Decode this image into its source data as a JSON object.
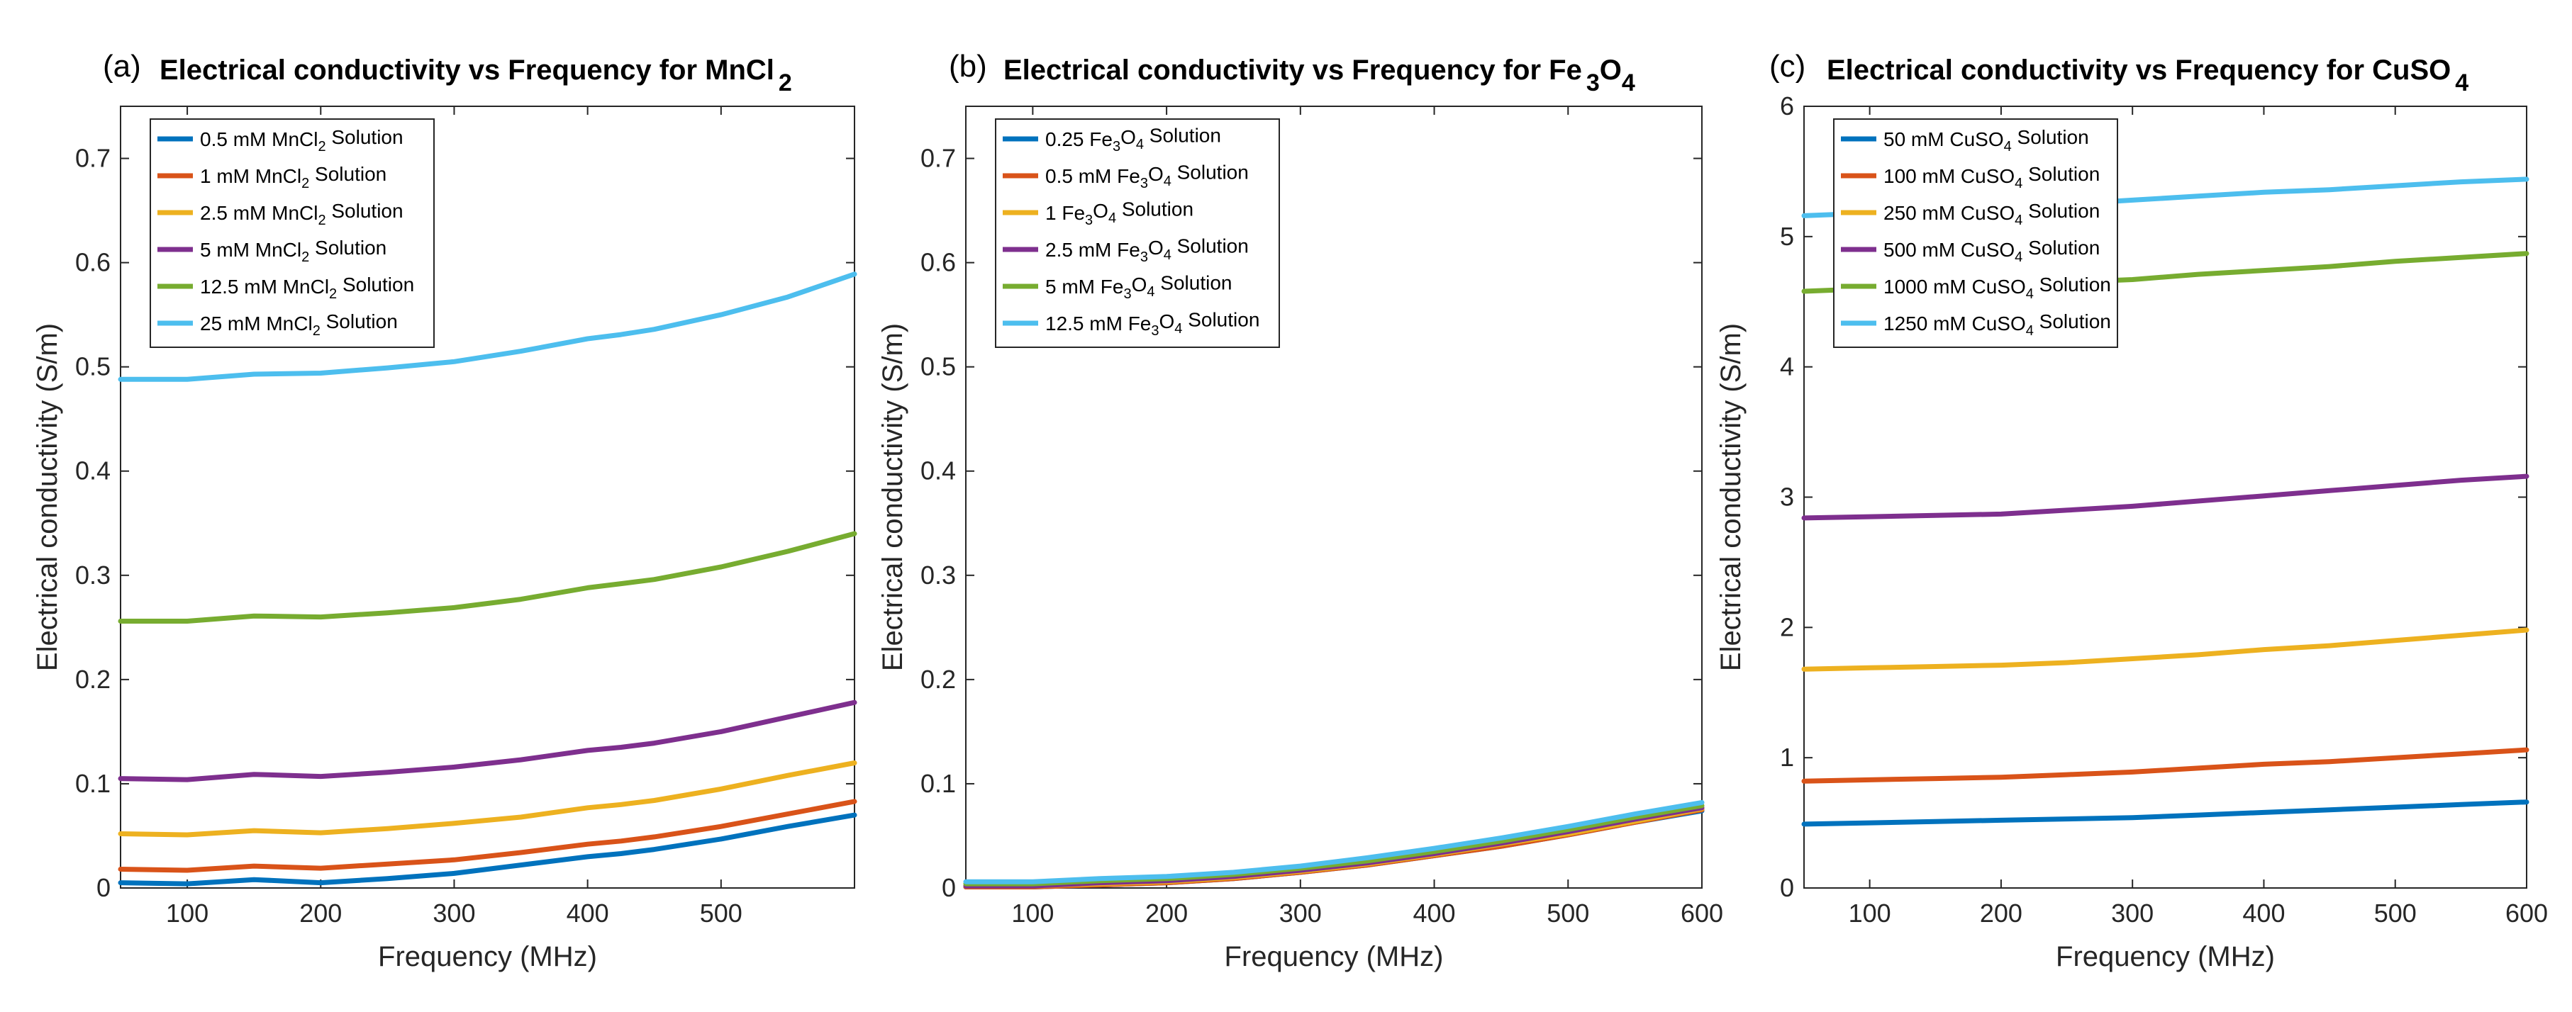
{
  "chart_data": [
    {
      "type": "line",
      "panel": "(a)",
      "title": "Electrical conductivity vs Frequency for MnCl",
      "title_sub": "2",
      "xlabel": "Frequency (MHz)",
      "ylabel": "Electrical conductivity (S/m)",
      "xlim": [
        50,
        600
      ],
      "ylim": [
        0,
        0.75
      ],
      "xticks": [
        100,
        200,
        300,
        400,
        500
      ],
      "xtick_labels": [
        "100",
        "200",
        "300",
        "400",
        "500"
      ],
      "yticks": [
        0,
        0.1,
        0.2,
        0.3,
        0.4,
        0.5,
        0.6,
        0.7
      ],
      "ytick_labels": [
        "0",
        "0.1",
        "0.2",
        "0.3",
        "0.4",
        "0.5",
        "0.6",
        "0.7"
      ],
      "legend_location": "top-left",
      "x": [
        50,
        100,
        150,
        200,
        250,
        300,
        350,
        400,
        425,
        450,
        500,
        550,
        600
      ],
      "series": [
        {
          "name": "0.5 mM MnCl2 Solution",
          "label": [
            {
              "t": "0.5 mM MnCl"
            },
            {
              "t": "2",
              "sub": true
            },
            {
              "t": " Solution"
            }
          ],
          "color": "#0072BD",
          "values": [
            0.005,
            0.004,
            0.008,
            0.005,
            0.009,
            0.014,
            0.022,
            0.03,
            0.033,
            0.037,
            0.047,
            0.059,
            0.07
          ]
        },
        {
          "name": "1 mM MnCl2 Solution",
          "label": [
            {
              "t": "1 mM MnCl"
            },
            {
              "t": "2",
              "sub": true
            },
            {
              "t": " Solution"
            }
          ],
          "color": "#D95319",
          "values": [
            0.018,
            0.017,
            0.021,
            0.019,
            0.023,
            0.027,
            0.034,
            0.042,
            0.045,
            0.049,
            0.059,
            0.071,
            0.083
          ]
        },
        {
          "name": "2.5 mM MnCl2 Solution",
          "label": [
            {
              "t": "2.5 mM MnCl"
            },
            {
              "t": "2",
              "sub": true
            },
            {
              "t": " Solution"
            }
          ],
          "color": "#EDB120",
          "values": [
            0.052,
            0.051,
            0.055,
            0.053,
            0.057,
            0.062,
            0.068,
            0.077,
            0.08,
            0.084,
            0.095,
            0.108,
            0.12
          ]
        },
        {
          "name": "5 mM MnCl2 Solution",
          "label": [
            {
              "t": "5 mM MnCl"
            },
            {
              "t": "2",
              "sub": true
            },
            {
              "t": " Solution"
            }
          ],
          "color": "#7E2F8E",
          "values": [
            0.105,
            0.104,
            0.109,
            0.107,
            0.111,
            0.116,
            0.123,
            0.132,
            0.135,
            0.139,
            0.15,
            0.164,
            0.178
          ]
        },
        {
          "name": "12.5 mM MnCl2 Solution",
          "label": [
            {
              "t": "12.5 mM MnCl"
            },
            {
              "t": "2",
              "sub": true
            },
            {
              "t": " Solution"
            }
          ],
          "color": "#77AC30",
          "values": [
            0.256,
            0.256,
            0.261,
            0.26,
            0.264,
            0.269,
            0.277,
            0.288,
            0.292,
            0.296,
            0.308,
            0.323,
            0.34
          ]
        },
        {
          "name": "25 mM MnCl2 Solution",
          "label": [
            {
              "t": "25 mM MnCl"
            },
            {
              "t": "2",
              "sub": true
            },
            {
              "t": " Solution"
            }
          ],
          "color": "#4DBEEE",
          "values": [
            0.488,
            0.488,
            0.493,
            0.494,
            0.499,
            0.505,
            0.515,
            0.527,
            0.531,
            0.536,
            0.55,
            0.567,
            0.589
          ]
        }
      ]
    },
    {
      "type": "line",
      "panel": "(b)",
      "title": "Electrical conductivity vs Frequency for Fe",
      "title_sub": "3",
      "title_tail": "O",
      "title_tail_sub": "4",
      "xlabel": "Frequency (MHz)",
      "ylabel": "Electrical conductivity (S/m)",
      "xlim": [
        50,
        600
      ],
      "ylim": [
        0,
        0.75
      ],
      "xticks": [
        100,
        200,
        300,
        400,
        500,
        600
      ],
      "xtick_labels": [
        "100",
        "200",
        "300",
        "400",
        "500",
        "600"
      ],
      "yticks": [
        0,
        0.1,
        0.2,
        0.3,
        0.4,
        0.5,
        0.6,
        0.7
      ],
      "ytick_labels": [
        "0",
        "0.1",
        "0.2",
        "0.3",
        "0.4",
        "0.5",
        "0.6",
        "0.7"
      ],
      "legend_location": "top-left",
      "x": [
        50,
        100,
        150,
        200,
        250,
        300,
        350,
        400,
        450,
        500,
        550,
        600
      ],
      "series": [
        {
          "name": "0.25 Fe3O4 Solution",
          "label": [
            {
              "t": "0.25 Fe"
            },
            {
              "t": "3",
              "sub": true
            },
            {
              "t": "O"
            },
            {
              "t": "4",
              "sub": true
            },
            {
              "t": " Solution"
            }
          ],
          "color": "#0072BD",
          "values": [
            0.001,
            0.001,
            0.003,
            0.005,
            0.009,
            0.015,
            0.022,
            0.031,
            0.04,
            0.051,
            0.063,
            0.074
          ]
        },
        {
          "name": "0.5 mM Fe3O4 Solution",
          "label": [
            {
              "t": "0.5 mM Fe"
            },
            {
              "t": "3",
              "sub": true
            },
            {
              "t": "O"
            },
            {
              "t": "4",
              "sub": true
            },
            {
              "t": " Solution"
            }
          ],
          "color": "#D95319",
          "values": [
            0.001,
            0.001,
            0.003,
            0.005,
            0.009,
            0.015,
            0.022,
            0.031,
            0.04,
            0.051,
            0.063,
            0.075
          ]
        },
        {
          "name": "1 Fe3O4 Solution",
          "label": [
            {
              "t": "1 Fe"
            },
            {
              "t": "3",
              "sub": true
            },
            {
              "t": "O"
            },
            {
              "t": "4",
              "sub": true
            },
            {
              "t": " Solution"
            }
          ],
          "color": "#EDB120",
          "values": [
            0.002,
            0.002,
            0.004,
            0.006,
            0.01,
            0.016,
            0.023,
            0.032,
            0.042,
            0.052,
            0.064,
            0.076
          ]
        },
        {
          "name": "2.5 mM Fe3O4 Solution",
          "label": [
            {
              "t": "2.5 mM Fe"
            },
            {
              "t": "3",
              "sub": true
            },
            {
              "t": "O"
            },
            {
              "t": "4",
              "sub": true
            },
            {
              "t": " Solution"
            }
          ],
          "color": "#7E2F8E",
          "values": [
            0.002,
            0.002,
            0.005,
            0.007,
            0.011,
            0.017,
            0.024,
            0.033,
            0.043,
            0.054,
            0.066,
            0.077
          ]
        },
        {
          "name": "5 mM Fe3O4 Solution",
          "label": [
            {
              "t": "5 mM Fe"
            },
            {
              "t": "3",
              "sub": true
            },
            {
              "t": "O"
            },
            {
              "t": "4",
              "sub": true
            },
            {
              "t": " Solution"
            }
          ],
          "color": "#77AC30",
          "values": [
            0.004,
            0.004,
            0.007,
            0.009,
            0.013,
            0.019,
            0.026,
            0.035,
            0.045,
            0.056,
            0.068,
            0.079
          ]
        },
        {
          "name": "12.5 mM Fe3O4 Solution",
          "label": [
            {
              "t": "12.5 mM Fe"
            },
            {
              "t": "3",
              "sub": true
            },
            {
              "t": "O"
            },
            {
              "t": "4",
              "sub": true
            },
            {
              "t": " Solution"
            }
          ],
          "color": "#4DBEEE",
          "values": [
            0.006,
            0.006,
            0.009,
            0.011,
            0.015,
            0.021,
            0.029,
            0.038,
            0.048,
            0.059,
            0.071,
            0.082
          ]
        }
      ]
    },
    {
      "type": "line",
      "panel": "(c)",
      "title": "Electrical conductivity vs Frequency for CuSO",
      "title_sub": "4",
      "xlabel": "Frequency (MHz)",
      "ylabel": "Electrical conductivity (S/m)",
      "xlim": [
        50,
        600
      ],
      "ylim": [
        0,
        6
      ],
      "xticks": [
        100,
        200,
        300,
        400,
        500,
        600
      ],
      "xtick_labels": [
        "100",
        "200",
        "300",
        "400",
        "500",
        "600"
      ],
      "yticks": [
        0,
        1,
        2,
        3,
        4,
        5,
        6
      ],
      "ytick_labels": [
        "0",
        "1",
        "2",
        "3",
        "4",
        "5",
        "6"
      ],
      "legend_location": "top-left",
      "x": [
        50,
        100,
        150,
        200,
        250,
        300,
        350,
        400,
        450,
        500,
        550,
        600
      ],
      "series": [
        {
          "name": "50 mM CuSO4 Solution",
          "label": [
            {
              "t": "50 mM CuSO"
            },
            {
              "t": "4",
              "sub": true
            },
            {
              "t": " Solution"
            }
          ],
          "color": "#0072BD",
          "values": [
            0.49,
            0.5,
            0.51,
            0.52,
            0.53,
            0.54,
            0.56,
            0.58,
            0.6,
            0.62,
            0.64,
            0.66
          ]
        },
        {
          "name": "100 mM CuSO4 Solution",
          "label": [
            {
              "t": "100 mM CuSO"
            },
            {
              "t": "4",
              "sub": true
            },
            {
              "t": " Solution"
            }
          ],
          "color": "#D95319",
          "values": [
            0.82,
            0.83,
            0.84,
            0.85,
            0.87,
            0.89,
            0.92,
            0.95,
            0.97,
            1.0,
            1.03,
            1.06
          ]
        },
        {
          "name": "250 mM CuSO4 Solution",
          "label": [
            {
              "t": "250 mM CuSO"
            },
            {
              "t": "4",
              "sub": true
            },
            {
              "t": " Solution"
            }
          ],
          "color": "#EDB120",
          "values": [
            1.68,
            1.69,
            1.7,
            1.71,
            1.73,
            1.76,
            1.79,
            1.83,
            1.86,
            1.9,
            1.94,
            1.98
          ]
        },
        {
          "name": "500 mM CuSO4 Solution",
          "label": [
            {
              "t": "500 mM CuSO"
            },
            {
              "t": "4",
              "sub": true
            },
            {
              "t": " Solution"
            }
          ],
          "color": "#7E2F8E",
          "values": [
            2.84,
            2.85,
            2.86,
            2.87,
            2.9,
            2.93,
            2.97,
            3.01,
            3.05,
            3.09,
            3.13,
            3.16
          ]
        },
        {
          "name": "1000 mM CuSO4 Solution",
          "label": [
            {
              "t": "1000 mM CuSO"
            },
            {
              "t": "4",
              "sub": true
            },
            {
              "t": " Solution"
            }
          ],
          "color": "#77AC30",
          "values": [
            4.58,
            4.6,
            4.62,
            4.63,
            4.65,
            4.67,
            4.71,
            4.74,
            4.77,
            4.81,
            4.84,
            4.87
          ]
        },
        {
          "name": "1250 mM CuSO4 Solution",
          "label": [
            {
              "t": "1250 mM CuSO"
            },
            {
              "t": "4",
              "sub": true
            },
            {
              "t": " Solution"
            }
          ],
          "color": "#4DBEEE",
          "values": [
            5.16,
            5.18,
            5.2,
            5.22,
            5.25,
            5.28,
            5.31,
            5.34,
            5.36,
            5.39,
            5.42,
            5.44
          ]
        }
      ]
    }
  ]
}
